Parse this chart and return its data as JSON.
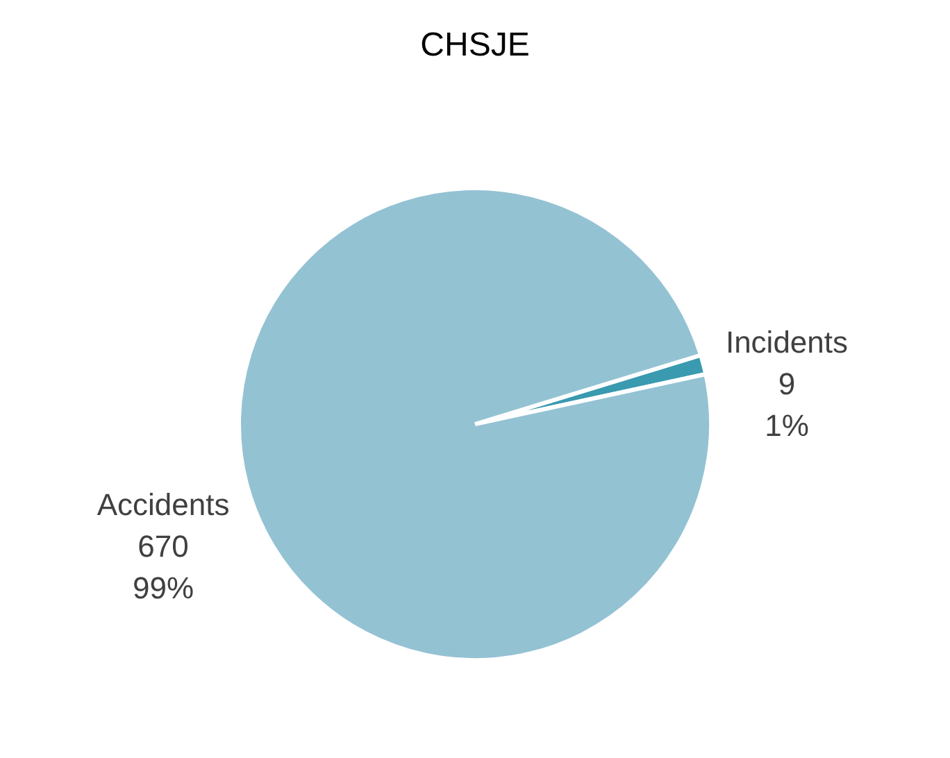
{
  "chart_data": {
    "type": "pie",
    "title": "CHSJE",
    "categories": [
      "Incidents",
      "Accidents"
    ],
    "values": [
      9,
      670
    ],
    "colors": [
      "#3a9ab0",
      "#93c2d3"
    ],
    "value_labels": [
      "9\n1%",
      "670\n99%"
    ]
  }
}
